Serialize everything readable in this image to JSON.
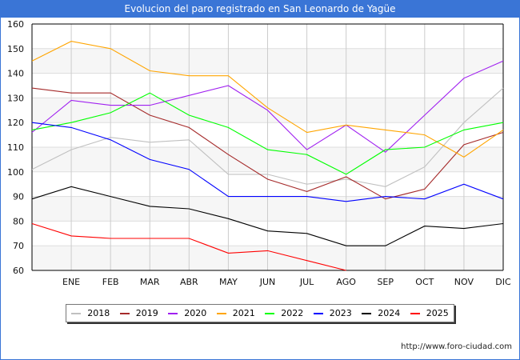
{
  "chart_data": {
    "type": "line",
    "title": "Evolucion del paro registrado en San Leonardo de Yagüe",
    "categories": [
      "",
      "ENE",
      "FEB",
      "MAR",
      "ABR",
      "MAY",
      "JUN",
      "JUL",
      "AGO",
      "SEP",
      "OCT",
      "NOV",
      "DIC"
    ],
    "ylim": [
      60,
      160
    ],
    "yticks": [
      60,
      70,
      80,
      90,
      100,
      110,
      120,
      130,
      140,
      150,
      160
    ],
    "grid": true,
    "legend_position": "bottom",
    "series": [
      {
        "name": "2018",
        "color": "#c0c0c0",
        "values": [
          101,
          109,
          114,
          112,
          113,
          99,
          99,
          95,
          97,
          94,
          102,
          120,
          134
        ]
      },
      {
        "name": "2019",
        "color": "#a52a2a",
        "values": [
          134,
          132,
          132,
          123,
          118,
          107,
          97,
          92,
          98,
          89,
          93,
          111,
          116
        ]
      },
      {
        "name": "2020",
        "color": "#a020f0",
        "values": [
          116,
          129,
          127,
          127,
          131,
          135,
          125,
          109,
          119,
          108,
          123,
          138,
          145
        ]
      },
      {
        "name": "2021",
        "color": "#ffa500",
        "values": [
          145,
          153,
          150,
          141,
          139,
          139,
          126,
          116,
          119,
          117,
          115,
          106,
          117
        ]
      },
      {
        "name": "2022",
        "color": "#00ff00",
        "values": [
          117,
          120,
          124,
          132,
          123,
          118,
          109,
          107,
          99,
          109,
          110,
          117,
          120
        ]
      },
      {
        "name": "2023",
        "color": "#0000ff",
        "values": [
          120,
          118,
          113,
          105,
          101,
          90,
          90,
          90,
          88,
          90,
          89,
          95,
          89
        ]
      },
      {
        "name": "2024",
        "color": "#000000",
        "values": [
          89,
          94,
          90,
          86,
          85,
          81,
          76,
          75,
          70,
          70,
          78,
          77,
          79
        ]
      },
      {
        "name": "2025",
        "color": "#ff0000",
        "values": [
          79,
          74,
          73,
          73,
          73,
          67,
          68,
          64,
          60,
          null,
          null,
          null,
          null
        ]
      }
    ]
  },
  "footer": {
    "url": "http://www.foro-ciudad.com"
  }
}
